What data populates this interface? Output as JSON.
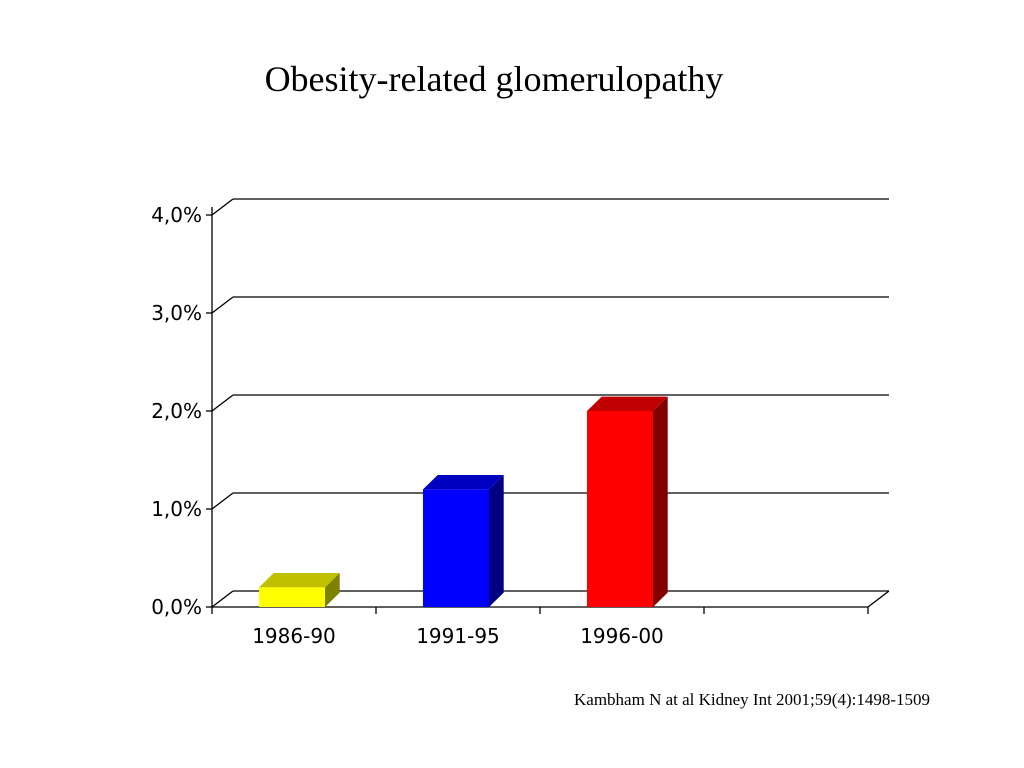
{
  "chart_data": {
    "type": "bar",
    "title": "Obesity-related glomerulopathy",
    "categories": [
      "1986-90",
      "1991-95",
      "1996-00"
    ],
    "values": [
      0.2,
      1.2,
      2.0
    ],
    "ylim": [
      0,
      4
    ],
    "y_ticks": [
      0,
      1,
      2,
      3,
      4
    ],
    "y_tick_labels": [
      "0,0%",
      "1,0%",
      "2,0%",
      "3,0%",
      "4,0%"
    ],
    "xlabel": "",
    "ylabel": "",
    "grid": true,
    "colors": [
      {
        "front": "#ffff00",
        "top": "#c0c000",
        "side": "#808000"
      },
      {
        "front": "#0000ff",
        "top": "#0000c0",
        "side": "#000080"
      },
      {
        "front": "#ff0000",
        "top": "#c00000",
        "side": "#800000"
      }
    ]
  },
  "citation": "Kambham N at al Kidney Int 2001;59(4):1498-1509"
}
